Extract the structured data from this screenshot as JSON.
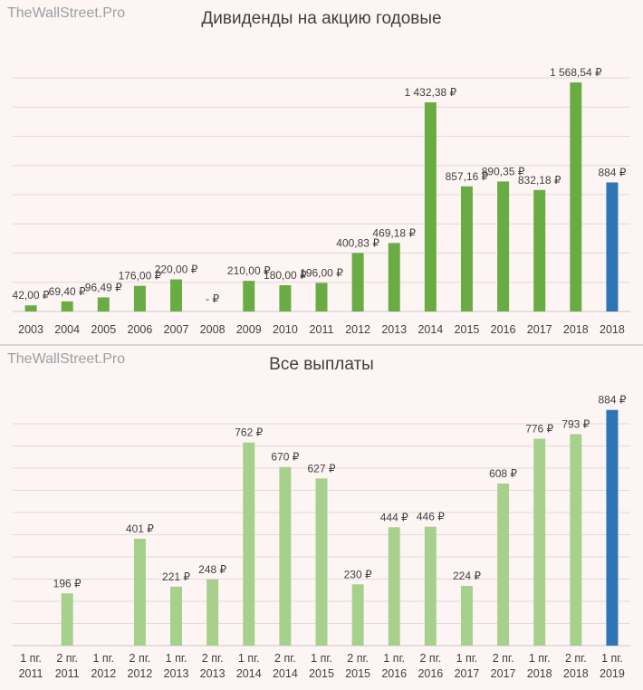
{
  "watermark": "TheWallStreet.Pro",
  "chart_data": [
    {
      "type": "bar",
      "title": "Дивиденды на акцию годовые",
      "categories": [
        "2003",
        "2004",
        "2005",
        "2006",
        "2007",
        "2008",
        "2009",
        "2010",
        "2011",
        "2012",
        "2013",
        "2014",
        "2015",
        "2016",
        "2017",
        "2018",
        "2018"
      ],
      "values": [
        42.0,
        69.4,
        96.49,
        176.0,
        220.0,
        0,
        210.0,
        180.0,
        196.0,
        400.83,
        469.18,
        1432.38,
        857.16,
        890.35,
        832.18,
        1568.54,
        884
      ],
      "labels": [
        "42,00 ₽",
        "69,40 ₽",
        "96,49 ₽",
        "176,00 ₽",
        "220,00 ₽",
        "-   ₽",
        "210,00 ₽",
        "180,00 ₽",
        "196,00 ₽",
        "400,83 ₽",
        "469,18 ₽",
        "1 432,38 ₽",
        "857,16 ₽",
        "890,35 ₽",
        "832,18 ₽",
        "1 568,54 ₽",
        "884 ₽"
      ],
      "highlight_index": 16,
      "colors": {
        "bar": "#6aac44",
        "highlight": "#2e75b6",
        "grid": "#e4d9d7",
        "label": "#404040"
      },
      "ylim": [
        0,
        1600
      ],
      "grid": true,
      "xlabel": "",
      "ylabel": ""
    },
    {
      "type": "bar",
      "title": "Все выплаты",
      "categories": [
        [
          "1 пг.",
          "2011"
        ],
        [
          "2 пг.",
          "2011"
        ],
        [
          "1 пг.",
          "2012"
        ],
        [
          "2 пг.",
          "2012"
        ],
        [
          "1 пг.",
          "2013"
        ],
        [
          "2 пг.",
          "2013"
        ],
        [
          "1 пг.",
          "2014"
        ],
        [
          "2 пг.",
          "2014"
        ],
        [
          "1 пг.",
          "2015"
        ],
        [
          "2 пг.",
          "2015"
        ],
        [
          "1 пг.",
          "2016"
        ],
        [
          "2 пг.",
          "2016"
        ],
        [
          "1 пг.",
          "2017"
        ],
        [
          "2 пг.",
          "2017"
        ],
        [
          "1 пг.",
          "2018"
        ],
        [
          "2 пг.",
          "2018"
        ],
        [
          "1 пг.",
          "2019"
        ]
      ],
      "values": [
        0,
        196,
        0,
        401,
        221,
        248,
        762,
        670,
        627,
        230,
        444,
        446,
        224,
        608,
        776,
        793,
        884
      ],
      "labels": [
        "",
        "196 ₽",
        "",
        "401 ₽",
        "221 ₽",
        "248 ₽",
        "762 ₽",
        "670 ₽",
        "627 ₽",
        "230 ₽",
        "444 ₽",
        "446 ₽",
        "224 ₽",
        "608 ₽",
        "776 ₽",
        "793 ₽",
        "884 ₽"
      ],
      "highlight_index": 16,
      "colors": {
        "bar": "#a8d08d",
        "highlight": "#2e75b6",
        "grid": "#e4d9d7",
        "label": "#404040"
      },
      "ylim": [
        0,
        900
      ],
      "grid": true,
      "xlabel": "",
      "ylabel": ""
    }
  ]
}
